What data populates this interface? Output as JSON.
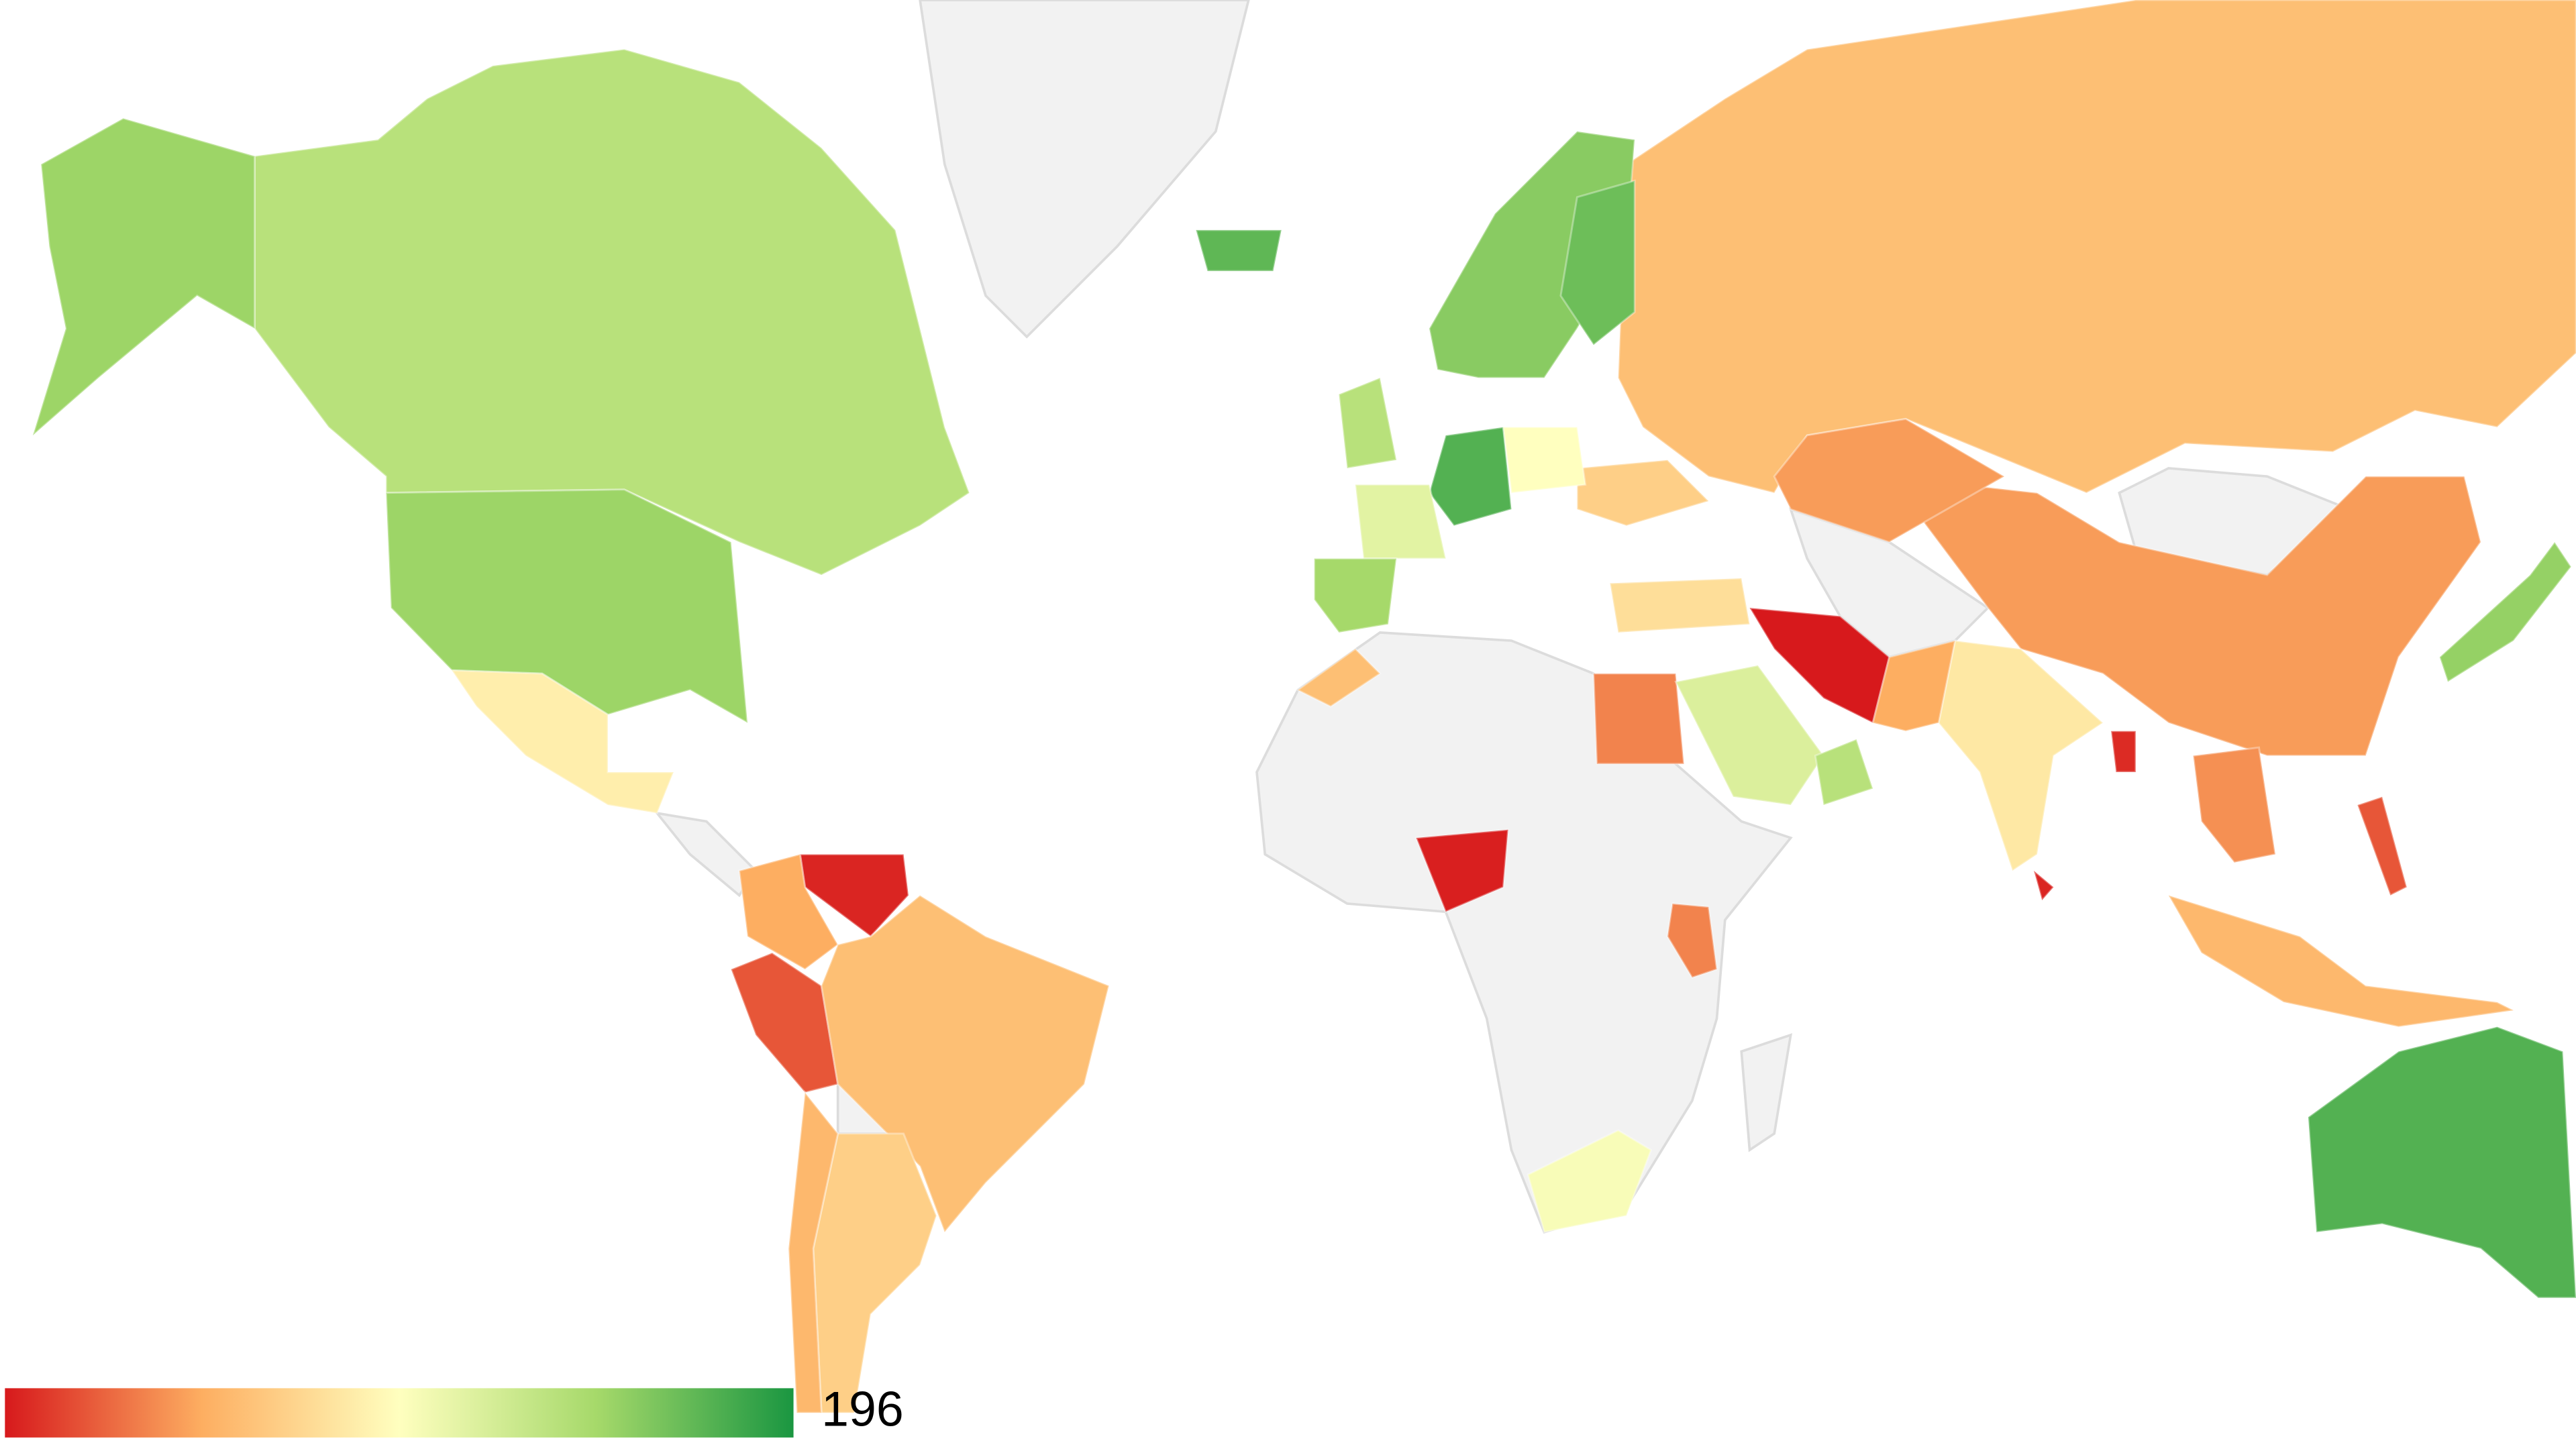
{
  "chart_data": {
    "type": "choropleth",
    "values": [
      137,
      150,
      150,
      88,
      4,
      49,
      20,
      59,
      69,
      55,
      59,
      43,
      43,
      0,
      84,
      2,
      35,
      118,
      35,
      102,
      176,
      157,
      167,
      176,
      114,
      147,
      137,
      69,
      78,
      98,
      153,
      55,
      20,
      39,
      172,
      6,
      4,
      49,
      137,
      59
    ],
    "colors": [
      "#d7191c",
      "#fdae61",
      "#ffffbf",
      "#a6d96a",
      "#1a9641"
    ],
    "no_data_color": "#f2f2f2",
    "legend": {
      "max": 196
    }
  }
}
